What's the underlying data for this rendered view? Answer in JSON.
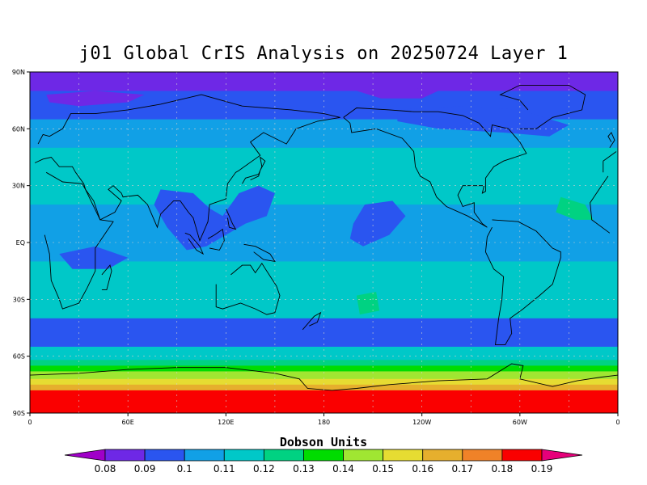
{
  "title": "j01 Global CrIS Analysis on 20250724 Layer 1",
  "chart_data": {
    "type": "heatmap",
    "title": "j01 Global CrIS Analysis on 20250724 Layer 1",
    "projection": "cylindrical equidistant, 0 to 360 longitude",
    "lat_range": [
      -90,
      90
    ],
    "lon_range": [
      0,
      360
    ],
    "lat_ticks": [
      "90N",
      "60N",
      "30N",
      "EQ",
      "30S",
      "60S",
      "90S"
    ],
    "lon_ticks": [
      "0",
      "60E",
      "120E",
      "180",
      "120W",
      "60W",
      "0"
    ],
    "grid": true,
    "colorbar": {
      "title": "Dobson Units",
      "levels": [
        "0.08",
        "0.09",
        "0.1",
        "0.11",
        "0.12",
        "0.13",
        "0.14",
        "0.15",
        "0.16",
        "0.17",
        "0.18",
        "0.19"
      ],
      "colors": [
        "#a000c8",
        "#6e28e6",
        "#2a55f0",
        "#11a0e6",
        "#00c8c8",
        "#00d282",
        "#00dc00",
        "#a0e632",
        "#e6dc32",
        "#e6af2d",
        "#f08228",
        "#fa0000",
        "#e6007a"
      ]
    },
    "zonal_profile": [
      {
        "lat_band": "90N-80N",
        "value": 0.085
      },
      {
        "lat_band": "80N-65N",
        "value": 0.095
      },
      {
        "lat_band": "65N-50N",
        "value": 0.105
      },
      {
        "lat_band": "50N-20N",
        "value": 0.115
      },
      {
        "lat_band": "20N-10S",
        "value": 0.105
      },
      {
        "lat_band": "10S-40S",
        "value": 0.115
      },
      {
        "lat_band": "40S-55S",
        "value": 0.095
      },
      {
        "lat_band": "55S-62S",
        "value": 0.115
      },
      {
        "lat_band": "62S-65S",
        "value": 0.125
      },
      {
        "lat_band": "65S-68S",
        "value": 0.135
      },
      {
        "lat_band": "68S-72S",
        "value": 0.145
      },
      {
        "lat_band": "72S-75S",
        "value": 0.155
      },
      {
        "lat_band": "75S-78S",
        "value": 0.165
      },
      {
        "lat_band": "78S-90S",
        "value": 0.185
      }
    ]
  }
}
